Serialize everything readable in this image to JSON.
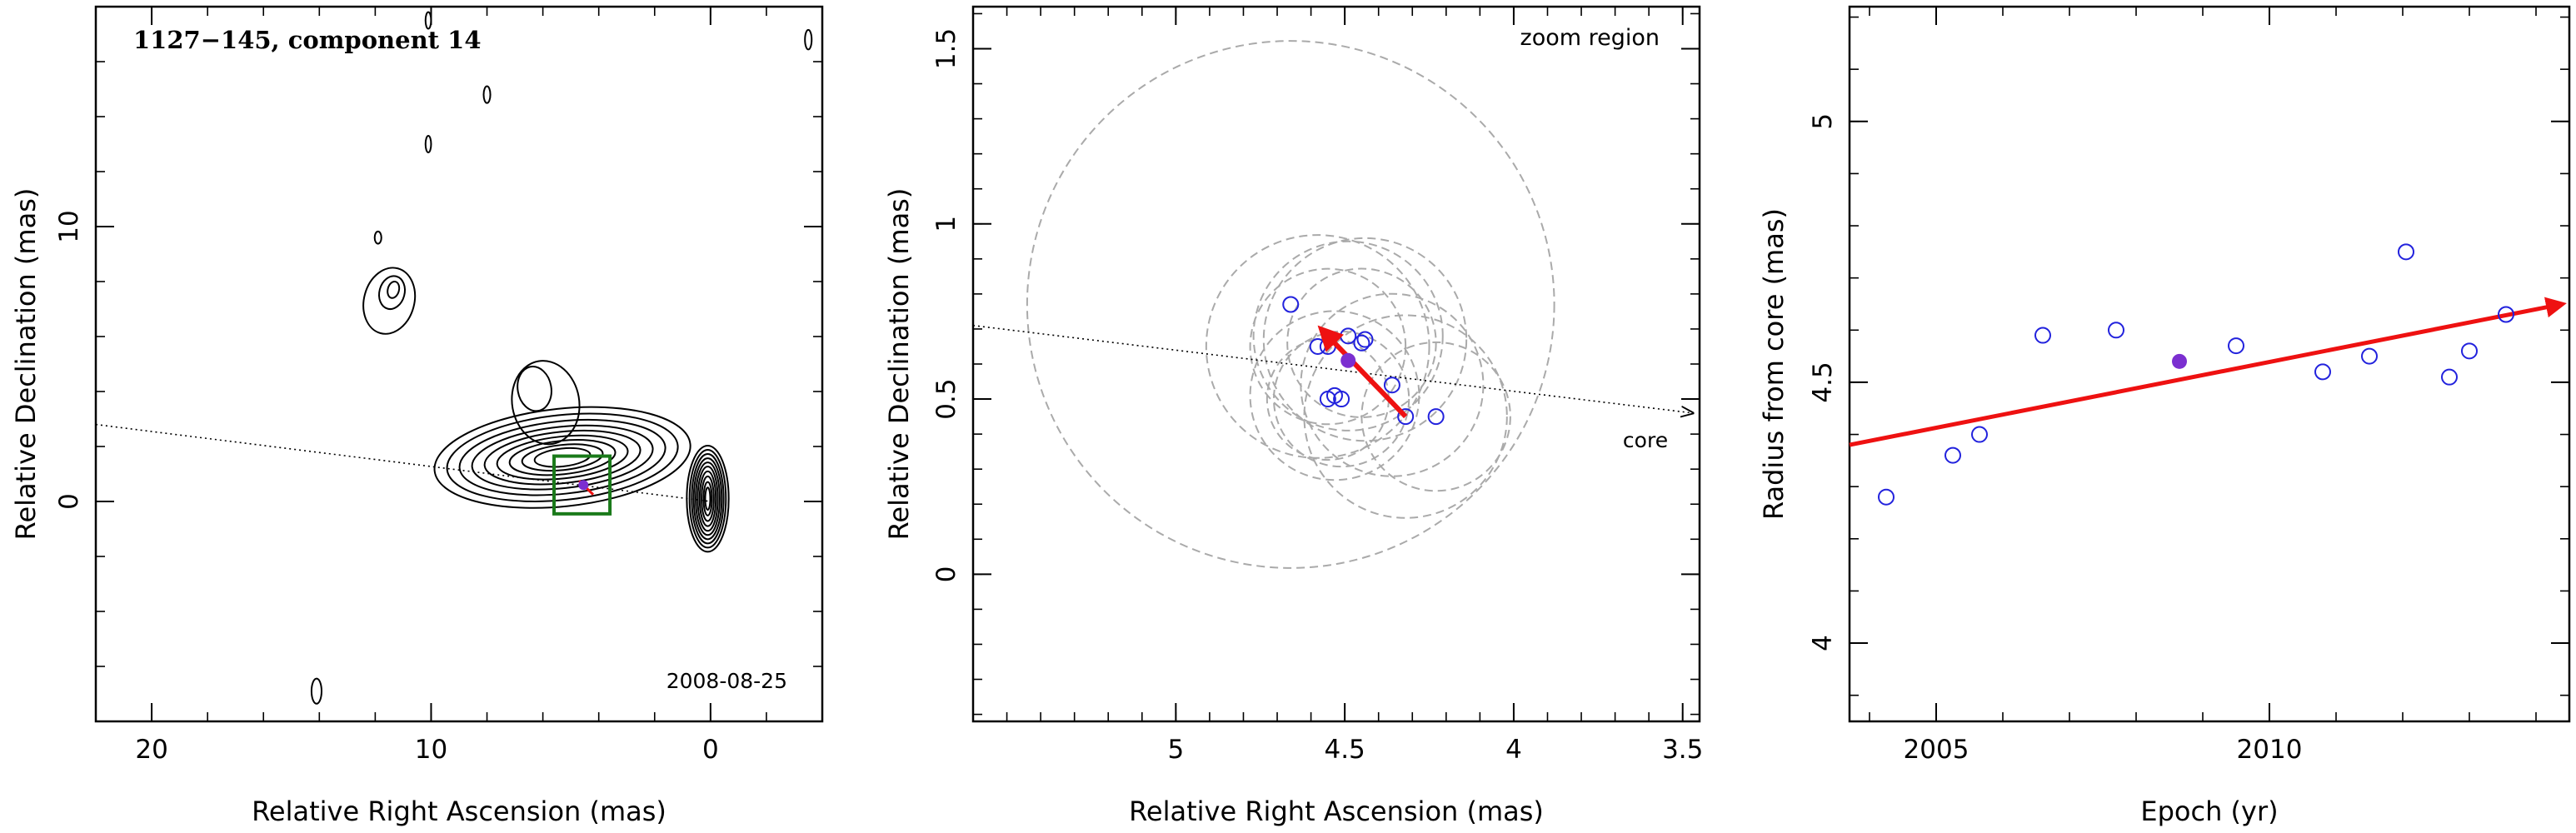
{
  "chart_data": [
    {
      "type": "contour",
      "title": "1127−145, component 14",
      "date_label": "2008-08-25",
      "xlabel": "Relative Right Ascension (mas)",
      "ylabel": "Relative Declination (mas)",
      "xlim": [
        22,
        -4
      ],
      "ylim": [
        -8,
        18
      ],
      "x_ticks": [
        "20",
        "10",
        "0"
      ],
      "x_tick_values": [
        20,
        10,
        0
      ],
      "y_ticks": [
        "0",
        "10"
      ],
      "y_tick_values": [
        0,
        10
      ],
      "component_position": [
        4.55,
        0.6
      ],
      "zoom_box": [
        [
          3.6,
          -0.45
        ],
        [
          5.6,
          1.65
        ]
      ],
      "jet_axis": [
        [
          22,
          2.8
        ],
        [
          0,
          0
        ]
      ],
      "contour_colors": {
        "contours": "#000000",
        "box": "#1a7a1a",
        "marker": "#7b2fd0",
        "arrow": "#ee1111"
      }
    },
    {
      "type": "scatter",
      "annotation_top": "zoom region",
      "annotation_core": "core",
      "xlabel": "Relative Right Ascension (mas)",
      "ylabel": "Relative Declination (mas)",
      "xlim": [
        5.6,
        3.45
      ],
      "ylim": [
        -0.42,
        1.62
      ],
      "x_ticks": [
        "5",
        "4.5",
        "4",
        "3.5"
      ],
      "x_tick_values": [
        5,
        4.5,
        4,
        3.5
      ],
      "y_ticks": [
        "0",
        "0.5",
        "1",
        "1.5"
      ],
      "y_tick_values": [
        0,
        0.5,
        1,
        1.5
      ],
      "points": [
        {
          "x": 4.66,
          "y": 0.77
        },
        {
          "x": 4.58,
          "y": 0.65
        },
        {
          "x": 4.55,
          "y": 0.65
        },
        {
          "x": 4.49,
          "y": 0.68
        },
        {
          "x": 4.45,
          "y": 0.66
        },
        {
          "x": 4.44,
          "y": 0.67
        },
        {
          "x": 4.55,
          "y": 0.5
        },
        {
          "x": 4.53,
          "y": 0.51
        },
        {
          "x": 4.51,
          "y": 0.5
        },
        {
          "x": 4.36,
          "y": 0.54
        },
        {
          "x": 4.32,
          "y": 0.45
        },
        {
          "x": 4.23,
          "y": 0.45
        }
      ],
      "highlight_point": {
        "x": 4.49,
        "y": 0.61
      },
      "velocity_arrow": {
        "from": [
          4.32,
          0.45
        ],
        "to": [
          4.57,
          0.7
        ]
      },
      "error_circles": [
        {
          "x": 4.66,
          "y": 0.77,
          "r": 0.78
        },
        {
          "x": 4.58,
          "y": 0.65,
          "r": 0.33
        },
        {
          "x": 4.55,
          "y": 0.65,
          "r": 0.23
        },
        {
          "x": 4.49,
          "y": 0.68,
          "r": 0.28
        },
        {
          "x": 4.45,
          "y": 0.66,
          "r": 0.22
        },
        {
          "x": 4.44,
          "y": 0.67,
          "r": 0.3
        },
        {
          "x": 4.55,
          "y": 0.5,
          "r": 0.18
        },
        {
          "x": 4.53,
          "y": 0.51,
          "r": 0.25
        },
        {
          "x": 4.51,
          "y": 0.5,
          "r": 0.2
        },
        {
          "x": 4.36,
          "y": 0.54,
          "r": 0.27
        },
        {
          "x": 4.32,
          "y": 0.45,
          "r": 0.3
        },
        {
          "x": 4.23,
          "y": 0.45,
          "r": 0.22
        }
      ],
      "jet_axis": {
        "from": [
          5.6,
          0.71
        ],
        "to": [
          3.45,
          0.46
        ]
      },
      "colors": {
        "points": "#2222dd",
        "highlight": "#7b2fd0",
        "arrow": "#ee1111",
        "circles": "#aaaaaa"
      }
    },
    {
      "type": "scatter",
      "xlabel": "Epoch (yr)",
      "ylabel": "Radius from core (mas)",
      "xlim": [
        2003.7,
        2014.5
      ],
      "ylim": [
        3.85,
        5.22
      ],
      "x_ticks": [
        "2005",
        "2010"
      ],
      "x_tick_values": [
        2005,
        2010
      ],
      "y_ticks": [
        "4",
        "4.5",
        "5"
      ],
      "y_tick_values": [
        4,
        4.5,
        5
      ],
      "points": [
        {
          "x": 2004.25,
          "y": 4.28
        },
        {
          "x": 2005.25,
          "y": 4.36
        },
        {
          "x": 2005.65,
          "y": 4.4
        },
        {
          "x": 2006.6,
          "y": 4.59
        },
        {
          "x": 2007.7,
          "y": 4.6
        },
        {
          "x": 2009.5,
          "y": 4.57
        },
        {
          "x": 2010.8,
          "y": 4.52
        },
        {
          "x": 2011.5,
          "y": 4.55
        },
        {
          "x": 2012.05,
          "y": 4.75
        },
        {
          "x": 2012.7,
          "y": 4.51
        },
        {
          "x": 2013.0,
          "y": 4.56
        },
        {
          "x": 2013.55,
          "y": 4.63
        }
      ],
      "highlight_point": {
        "x": 2008.65,
        "y": 4.54
      },
      "fit_line": {
        "from": [
          2003.7,
          4.38
        ],
        "to": [
          2014.4,
          4.65
        ]
      },
      "colors": {
        "points": "#2222dd",
        "highlight": "#7b2fd0",
        "arrow": "#ee1111"
      }
    }
  ]
}
